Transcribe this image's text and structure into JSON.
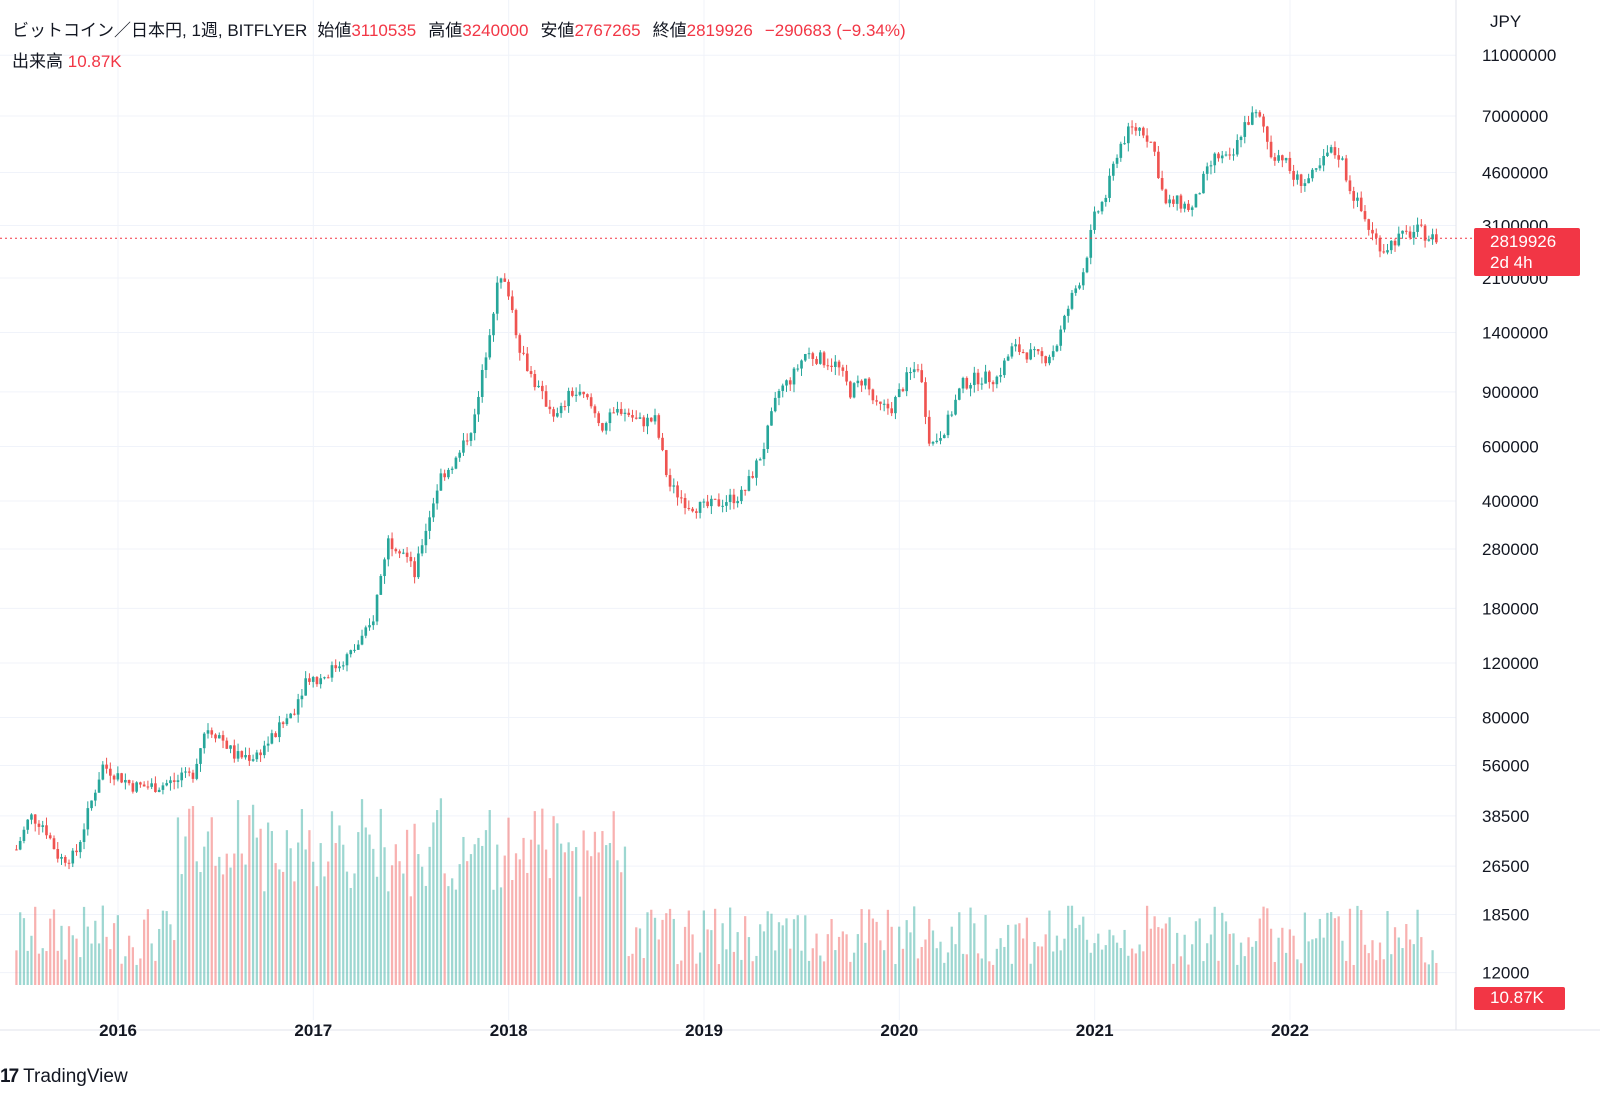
{
  "legend": {
    "symbol": "ビットコイン／日本円, 1週, BITFLYER",
    "open_label": "始値",
    "open": "3110535",
    "high_label": "高値",
    "high": "3240000",
    "low_label": "安値",
    "low": "2767265",
    "close_label": "終値",
    "close": "2819926",
    "change": "−290683 (−9.34%)",
    "volume_label": "出来高",
    "volume": "10.87K"
  },
  "currency": "JPY",
  "price_badge": {
    "price": "2819926",
    "countdown": "2d 4h"
  },
  "volume_badge": "10.87K",
  "brand": {
    "logo": "17",
    "name": "TradingView"
  },
  "colors": {
    "up": "#26a69a",
    "down": "#ef5350",
    "accent": "#f23645",
    "grid": "#f0f3fa"
  },
  "chart_data": {
    "type": "candlestick",
    "y_scale": "log",
    "y_ticks": [
      11000000,
      7000000,
      4600000,
      3100000,
      2100000,
      1400000,
      900000,
      600000,
      400000,
      280000,
      180000,
      120000,
      80000,
      56000,
      38500,
      26500,
      18500,
      12000
    ],
    "y_tick_labels": [
      "11000000",
      "7000000",
      "4600000",
      "3100000",
      "2100000",
      "1400000",
      "900000",
      "600000",
      "400000",
      "280000",
      "180000",
      "120000",
      "80000",
      "56000",
      "38500",
      "26500",
      "18500",
      "12000"
    ],
    "x_tick_labels": [
      "2016",
      "2017",
      "2018",
      "2019",
      "2020",
      "2021",
      "2022"
    ],
    "x_tick_dates": [
      2016.0,
      2017.0,
      2018.0,
      2019.0,
      2020.0,
      2021.0,
      2022.0
    ],
    "x_range": [
      2015.48,
      2022.75
    ],
    "last_price": 2819926,
    "price_path": [
      [
        2015.48,
        30000
      ],
      [
        2015.55,
        38500
      ],
      [
        2015.62,
        36000
      ],
      [
        2015.7,
        28000
      ],
      [
        2015.78,
        28500
      ],
      [
        2015.85,
        40000
      ],
      [
        2015.92,
        56000
      ],
      [
        2016.0,
        52000
      ],
      [
        2016.08,
        48000
      ],
      [
        2016.2,
        48000
      ],
      [
        2016.3,
        50000
      ],
      [
        2016.38,
        52000
      ],
      [
        2016.45,
        75000
      ],
      [
        2016.52,
        70000
      ],
      [
        2016.6,
        60000
      ],
      [
        2016.7,
        60000
      ],
      [
        2016.8,
        70000
      ],
      [
        2016.9,
        85000
      ],
      [
        2016.97,
        110000
      ],
      [
        2017.02,
        105000
      ],
      [
        2017.1,
        115000
      ],
      [
        2017.2,
        130000
      ],
      [
        2017.3,
        160000
      ],
      [
        2017.38,
        300000
      ],
      [
        2017.46,
        280000
      ],
      [
        2017.52,
        230000
      ],
      [
        2017.56,
        300000
      ],
      [
        2017.65,
        480000
      ],
      [
        2017.74,
        550000
      ],
      [
        2017.83,
        750000
      ],
      [
        2017.9,
        1400000
      ],
      [
        2017.95,
        2100000
      ],
      [
        2018.0,
        1900000
      ],
      [
        2018.05,
        1300000
      ],
      [
        2018.12,
        1000000
      ],
      [
        2018.18,
        850000
      ],
      [
        2018.25,
        750000
      ],
      [
        2018.32,
        900000
      ],
      [
        2018.4,
        850000
      ],
      [
        2018.48,
        700000
      ],
      [
        2018.58,
        800000
      ],
      [
        2018.66,
        720000
      ],
      [
        2018.75,
        730000
      ],
      [
        2018.82,
        450000
      ],
      [
        2018.92,
        390000
      ],
      [
        2019.0,
        380000
      ],
      [
        2019.1,
        400000
      ],
      [
        2019.2,
        420000
      ],
      [
        2019.3,
        580000
      ],
      [
        2019.38,
        900000
      ],
      [
        2019.45,
        1000000
      ],
      [
        2019.52,
        1200000
      ],
      [
        2019.6,
        1150000
      ],
      [
        2019.68,
        1100000
      ],
      [
        2019.75,
        900000
      ],
      [
        2019.82,
        1000000
      ],
      [
        2019.88,
        800000
      ],
      [
        2019.96,
        800000
      ],
      [
        2020.04,
        1000000
      ],
      [
        2020.1,
        1100000
      ],
      [
        2020.16,
        600000
      ],
      [
        2020.24,
        700000
      ],
      [
        2020.32,
        950000
      ],
      [
        2020.4,
        1000000
      ],
      [
        2020.5,
        1000000
      ],
      [
        2020.58,
        1250000
      ],
      [
        2020.66,
        1200000
      ],
      [
        2020.74,
        1150000
      ],
      [
        2020.8,
        1250000
      ],
      [
        2020.88,
        1800000
      ],
      [
        2020.94,
        2200000
      ],
      [
        2021.0,
        3300000
      ],
      [
        2021.06,
        3900000
      ],
      [
        2021.12,
        5500000
      ],
      [
        2021.18,
        6300000
      ],
      [
        2021.24,
        6400000
      ],
      [
        2021.3,
        5600000
      ],
      [
        2021.36,
        3600000
      ],
      [
        2021.42,
        3700000
      ],
      [
        2021.5,
        3500000
      ],
      [
        2021.56,
        4400000
      ],
      [
        2021.62,
        5200000
      ],
      [
        2021.7,
        5000000
      ],
      [
        2021.76,
        6500000
      ],
      [
        2021.82,
        7100000
      ],
      [
        2021.86,
        6600000
      ],
      [
        2021.9,
        5300000
      ],
      [
        2021.96,
        5200000
      ],
      [
        2022.02,
        4400000
      ],
      [
        2022.08,
        4300000
      ],
      [
        2022.14,
        4600000
      ],
      [
        2022.2,
        5400000
      ],
      [
        2022.26,
        5200000
      ],
      [
        2022.3,
        4200000
      ],
      [
        2022.36,
        3500000
      ],
      [
        2022.42,
        2900000
      ],
      [
        2022.48,
        2600000
      ],
      [
        2022.54,
        2800000
      ],
      [
        2022.6,
        2900000
      ],
      [
        2022.66,
        3000000
      ],
      [
        2022.72,
        2820000
      ]
    ],
    "volume_axis_label": "10.87K"
  }
}
